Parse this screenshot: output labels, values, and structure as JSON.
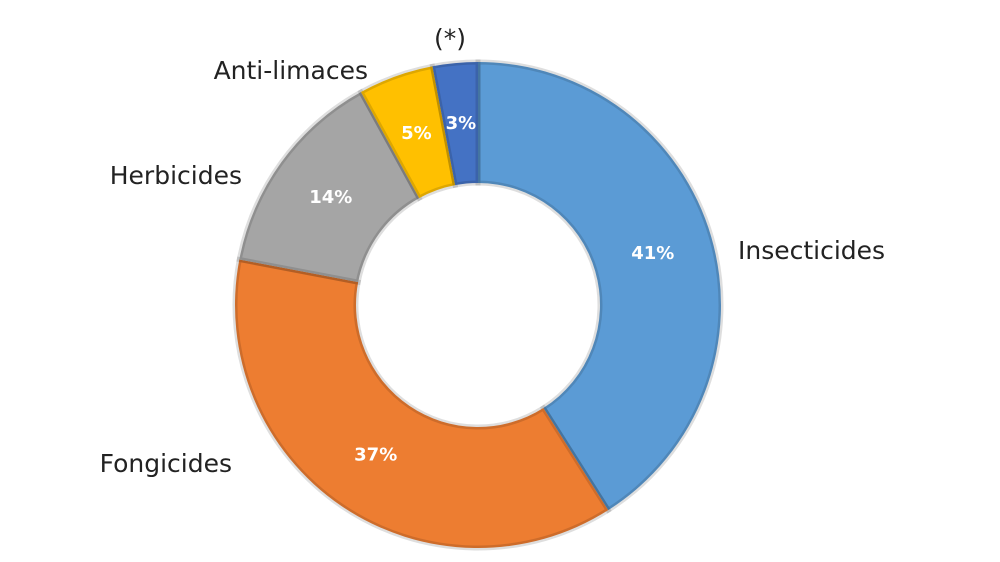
{
  "chart_data": {
    "type": "donut",
    "categories": [
      "Insecticides",
      "Fongicides",
      "Herbicides",
      "Anti-limaces",
      "(*)"
    ],
    "values": [
      41,
      37,
      14,
      5,
      3
    ],
    "value_labels": [
      "41%",
      "37%",
      "14%",
      "5%",
      "3%"
    ],
    "colors": [
      "#5b9bd5",
      "#ed7d31",
      "#a5a5a5",
      "#ffc000",
      "#4472c4"
    ]
  }
}
